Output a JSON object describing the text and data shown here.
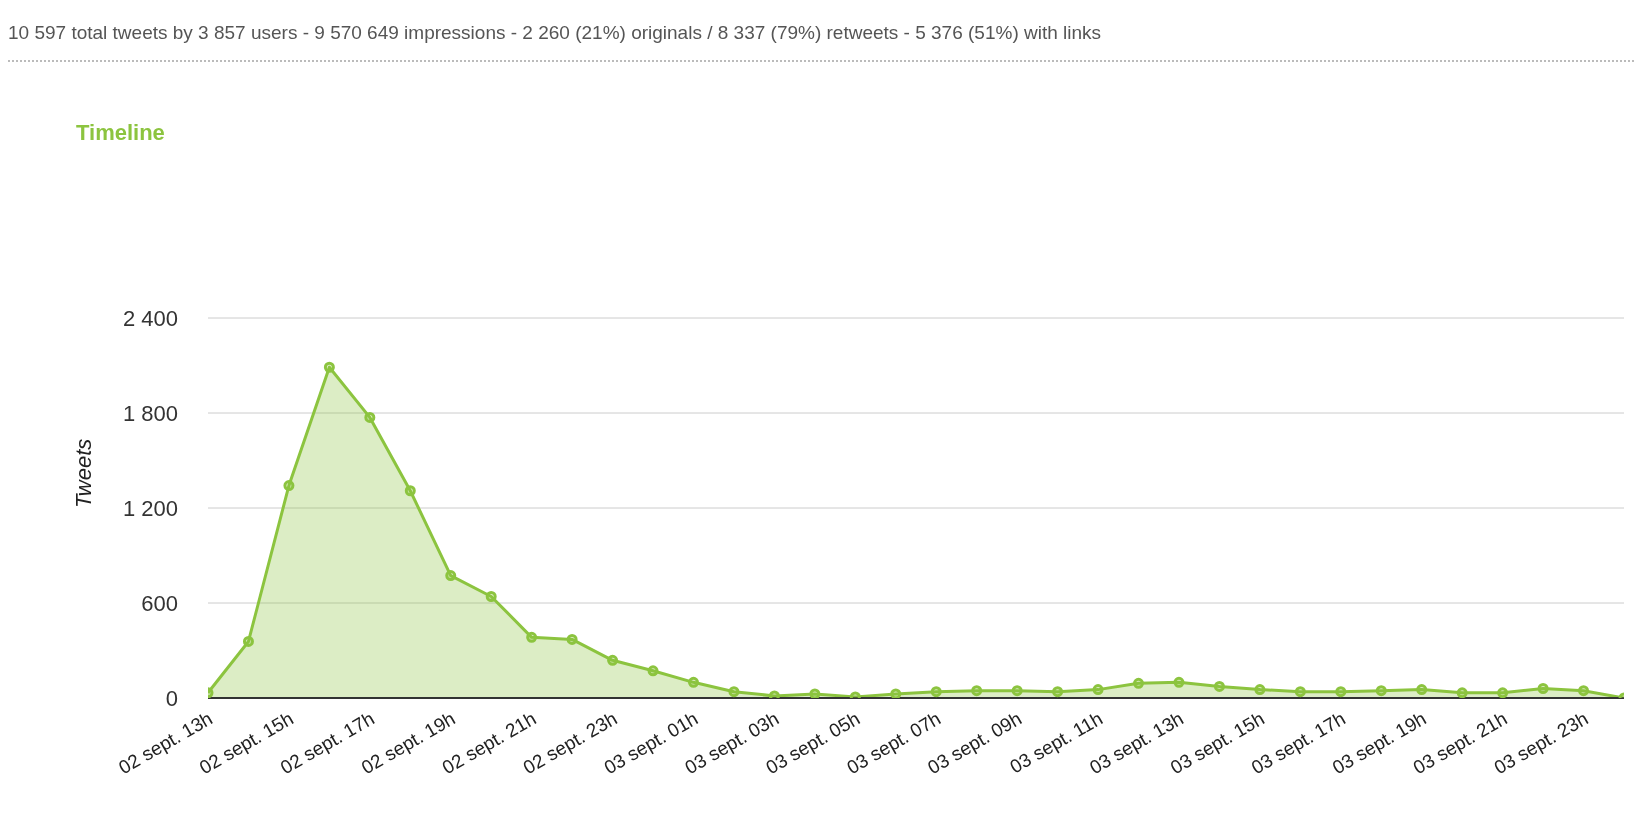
{
  "chart_data": {
    "type": "area",
    "title": "Timeline",
    "subtitle": "10 597 total tweets by 3 857 users - 9 570 649 impressions - 2 260 (21%) originals / 8 337 (79%) retweets - 5 376 (51%) with links",
    "ylabel": "Tweets",
    "categories": [
      "02 sept. 13h",
      null,
      "02 sept. 15h",
      null,
      "02 sept. 17h",
      null,
      "02 sept. 19h",
      null,
      "02 sept. 21h",
      null,
      "02 sept. 23h",
      null,
      "03 sept. 01h",
      null,
      "03 sept. 03h",
      null,
      "03 sept. 05h",
      null,
      "03 sept. 07h",
      null,
      "03 sept. 09h",
      null,
      "03 sept. 11h",
      null,
      "03 sept. 13h",
      null,
      "03 sept. 15h",
      null,
      "03 sept. 17h",
      null,
      "03 sept. 19h",
      null,
      "03 sept. 21h",
      null,
      "03 sept. 23h",
      null
    ],
    "series": [
      {
        "color": "#8cc43f",
        "values": [
          33,
          357,
          1342,
          2089,
          1772,
          1309,
          773,
          641,
          383,
          370,
          238,
          172,
          99,
          40,
          13,
          26,
          7,
          26,
          40,
          46,
          46,
          40,
          53,
          93,
          99,
          73,
          53,
          40,
          40,
          46,
          53,
          33,
          33,
          60,
          46,
          0
        ]
      }
    ],
    "ylim": [
      0,
      2400
    ],
    "yticks": [
      0,
      {
        "value": 600,
        "label": "600"
      },
      {
        "value": 1200,
        "label": "1 200"
      },
      {
        "value": 1800,
        "label": "1 800"
      },
      {
        "value": 2400,
        "label": "2 400"
      }
    ],
    "grid": "y",
    "marker": "circle"
  }
}
